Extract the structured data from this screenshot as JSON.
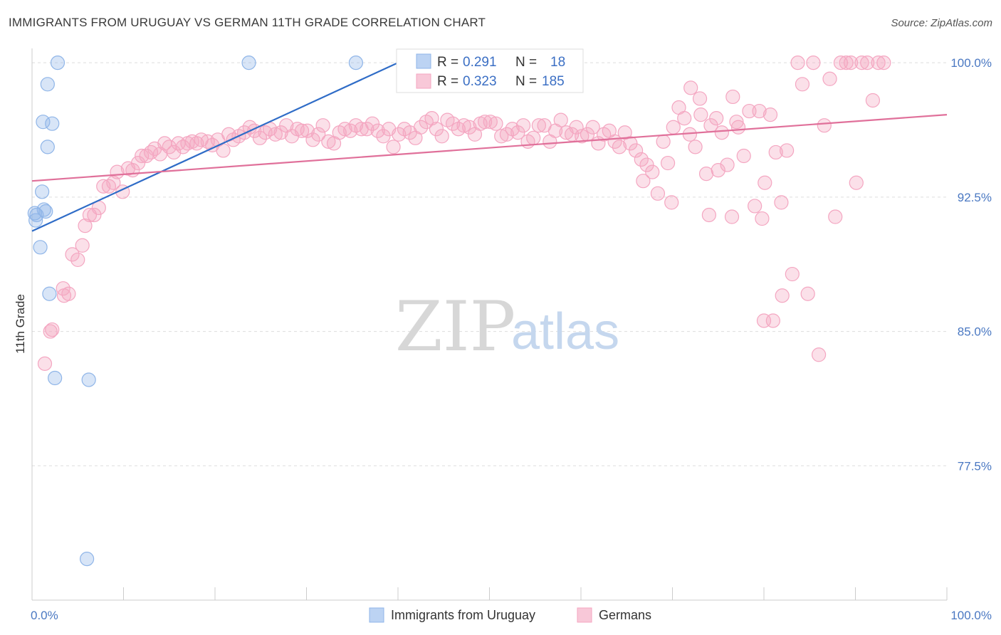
{
  "title": "IMMIGRANTS FROM URUGUAY VS GERMAN 11TH GRADE CORRELATION CHART",
  "source": "Source: ZipAtlas.com",
  "watermark": {
    "zip": "ZIP",
    "atlas": "atlas"
  },
  "chart_data": {
    "type": "scatter",
    "xlabel": "",
    "ylabel": "11th Grade",
    "xlim": [
      0,
      100
    ],
    "ylim": [
      70.0,
      100.8
    ],
    "x_tick_labels": [
      "0.0%",
      "100.0%"
    ],
    "y_ticks": [
      100.0,
      92.5,
      85.0,
      77.5
    ],
    "y_tick_labels": [
      "100.0%",
      "92.5%",
      "85.0%",
      "77.5%"
    ],
    "grid": true,
    "legend_position": "bottom-center",
    "stats": [
      {
        "r_label": "R =",
        "r": "0.291",
        "n_label": "N =",
        "n": "18"
      },
      {
        "r_label": "R =",
        "r": "0.323",
        "n_label": "N =",
        "n": "185"
      }
    ],
    "series": [
      {
        "name": "Immigrants from Uruguay",
        "color": "#8fb5e8",
        "line_color": "#2f6cc7",
        "trend": [
          [
            0,
            90.6
          ],
          [
            40,
            100.0
          ]
        ],
        "points": [
          [
            2.8,
            100.0
          ],
          [
            23.7,
            100.0
          ],
          [
            35.4,
            100.0
          ],
          [
            1.7,
            98.8
          ],
          [
            1.2,
            96.7
          ],
          [
            2.2,
            96.6
          ],
          [
            1.7,
            95.3
          ],
          [
            1.1,
            92.8
          ],
          [
            1.3,
            91.8
          ],
          [
            0.3,
            91.6
          ],
          [
            0.5,
            91.5
          ],
          [
            0.4,
            91.2
          ],
          [
            0.9,
            89.7
          ],
          [
            1.9,
            87.1
          ],
          [
            2.5,
            82.4
          ],
          [
            6.2,
            82.3
          ],
          [
            6.0,
            72.3
          ],
          [
            1.5,
            91.7
          ]
        ]
      },
      {
        "name": "Germans",
        "color": "#f4a6c1",
        "line_color": "#e0709a",
        "trend": [
          [
            0,
            93.4
          ],
          [
            100,
            97.1
          ]
        ],
        "points": [
          [
            1.4,
            83.2
          ],
          [
            2.2,
            85.1
          ],
          [
            2.0,
            85.0
          ],
          [
            3.5,
            87.0
          ],
          [
            3.4,
            87.4
          ],
          [
            4.0,
            87.1
          ],
          [
            4.4,
            89.3
          ],
          [
            5.0,
            89.0
          ],
          [
            5.5,
            89.8
          ],
          [
            5.8,
            90.9
          ],
          [
            6.3,
            91.5
          ],
          [
            6.8,
            91.5
          ],
          [
            7.3,
            91.9
          ],
          [
            7.8,
            93.1
          ],
          [
            8.4,
            93.1
          ],
          [
            8.9,
            93.3
          ],
          [
            9.3,
            93.9
          ],
          [
            9.9,
            92.8
          ],
          [
            10.5,
            94.1
          ],
          [
            11.0,
            94.0
          ],
          [
            11.6,
            94.4
          ],
          [
            12.0,
            94.8
          ],
          [
            12.5,
            94.8
          ],
          [
            13.0,
            95.0
          ],
          [
            13.4,
            95.2
          ],
          [
            14.0,
            94.9
          ],
          [
            14.5,
            95.5
          ],
          [
            15.0,
            95.3
          ],
          [
            15.5,
            95.0
          ],
          [
            16.0,
            95.5
          ],
          [
            16.5,
            95.3
          ],
          [
            17.0,
            95.5
          ],
          [
            17.5,
            95.6
          ],
          [
            18.0,
            95.5
          ],
          [
            18.5,
            95.7
          ],
          [
            19.2,
            95.6
          ],
          [
            19.7,
            95.4
          ],
          [
            20.3,
            95.7
          ],
          [
            20.9,
            95.1
          ],
          [
            21.5,
            96.0
          ],
          [
            22.0,
            95.7
          ],
          [
            22.6,
            95.9
          ],
          [
            23.2,
            96.1
          ],
          [
            23.8,
            96.4
          ],
          [
            24.3,
            96.2
          ],
          [
            24.9,
            95.8
          ],
          [
            25.5,
            96.1
          ],
          [
            26.0,
            96.3
          ],
          [
            26.6,
            96.0
          ],
          [
            27.2,
            96.1
          ],
          [
            27.8,
            96.5
          ],
          [
            28.4,
            95.9
          ],
          [
            29.0,
            96.3
          ],
          [
            29.5,
            96.2
          ],
          [
            30.1,
            96.2
          ],
          [
            30.7,
            95.7
          ],
          [
            31.3,
            96.0
          ],
          [
            31.8,
            96.5
          ],
          [
            32.4,
            95.6
          ],
          [
            33.0,
            95.5
          ],
          [
            33.6,
            96.1
          ],
          [
            34.2,
            96.3
          ],
          [
            34.8,
            96.2
          ],
          [
            35.4,
            96.5
          ],
          [
            36.0,
            96.3
          ],
          [
            36.6,
            96.3
          ],
          [
            37.2,
            96.6
          ],
          [
            37.8,
            96.2
          ],
          [
            38.4,
            95.9
          ],
          [
            39.0,
            96.3
          ],
          [
            39.5,
            95.3
          ],
          [
            40.1,
            96.0
          ],
          [
            40.7,
            96.3
          ],
          [
            41.3,
            96.1
          ],
          [
            41.9,
            95.8
          ],
          [
            42.5,
            96.4
          ],
          [
            43.1,
            96.7
          ],
          [
            43.7,
            96.9
          ],
          [
            44.2,
            96.3
          ],
          [
            44.8,
            95.9
          ],
          [
            45.4,
            96.8
          ],
          [
            46.0,
            96.6
          ],
          [
            46.6,
            96.3
          ],
          [
            47.2,
            96.5
          ],
          [
            47.8,
            96.4
          ],
          [
            48.4,
            96.0
          ],
          [
            49.0,
            96.6
          ],
          [
            49.5,
            96.7
          ],
          [
            50.1,
            96.7
          ],
          [
            50.7,
            96.6
          ],
          [
            51.3,
            95.9
          ],
          [
            51.9,
            96.0
          ],
          [
            52.5,
            96.3
          ],
          [
            53.1,
            96.1
          ],
          [
            53.7,
            96.5
          ],
          [
            54.2,
            95.6
          ],
          [
            54.8,
            95.8
          ],
          [
            55.4,
            96.5
          ],
          [
            56.0,
            96.5
          ],
          [
            56.6,
            95.6
          ],
          [
            57.2,
            96.2
          ],
          [
            57.8,
            96.8
          ],
          [
            58.4,
            96.1
          ],
          [
            59.0,
            96.0
          ],
          [
            59.5,
            96.4
          ],
          [
            60.1,
            95.9
          ],
          [
            60.7,
            96.0
          ],
          [
            61.3,
            96.4
          ],
          [
            61.9,
            95.5
          ],
          [
            62.5,
            96.0
          ],
          [
            63.1,
            96.2
          ],
          [
            63.7,
            95.6
          ],
          [
            64.2,
            95.3
          ],
          [
            64.8,
            96.1
          ],
          [
            65.4,
            95.5
          ],
          [
            66.0,
            95.1
          ],
          [
            66.6,
            94.6
          ],
          [
            67.2,
            94.3
          ],
          [
            67.8,
            93.9
          ],
          [
            68.4,
            92.7
          ],
          [
            69.0,
            95.6
          ],
          [
            69.5,
            94.4
          ],
          [
            70.1,
            96.4
          ],
          [
            70.7,
            97.5
          ],
          [
            71.3,
            96.9
          ],
          [
            71.9,
            96.0
          ],
          [
            72.5,
            95.3
          ],
          [
            73.1,
            97.1
          ],
          [
            73.7,
            93.8
          ],
          [
            74.2,
            96.5
          ],
          [
            74.8,
            96.9
          ],
          [
            75.4,
            96.1
          ],
          [
            76.0,
            94.3
          ],
          [
            76.6,
            98.1
          ],
          [
            77.2,
            96.4
          ],
          [
            77.8,
            94.8
          ],
          [
            78.4,
            97.3
          ],
          [
            79.0,
            92.0
          ],
          [
            79.5,
            97.3
          ],
          [
            80.1,
            93.3
          ],
          [
            80.7,
            97.1
          ],
          [
            81.3,
            95.0
          ],
          [
            81.9,
            92.2
          ],
          [
            82.5,
            95.1
          ],
          [
            83.1,
            88.2
          ],
          [
            83.7,
            100.0
          ],
          [
            84.2,
            98.8
          ],
          [
            84.8,
            87.1
          ],
          [
            85.4,
            100.0
          ],
          [
            86.0,
            83.7
          ],
          [
            86.6,
            96.5
          ],
          [
            87.2,
            99.1
          ],
          [
            87.8,
            91.4
          ],
          [
            88.4,
            100.0
          ],
          [
            89.0,
            100.0
          ],
          [
            89.5,
            100.0
          ],
          [
            90.1,
            93.3
          ],
          [
            90.7,
            100.0
          ],
          [
            91.3,
            100.0
          ],
          [
            91.9,
            97.9
          ],
          [
            92.5,
            100.0
          ],
          [
            93.1,
            100.0
          ],
          [
            72.0,
            98.6
          ],
          [
            76.5,
            91.4
          ],
          [
            79.8,
            91.3
          ],
          [
            81.0,
            85.6
          ],
          [
            82.0,
            87.0
          ],
          [
            80.0,
            85.6
          ],
          [
            66.8,
            93.4
          ],
          [
            75.0,
            94.0
          ],
          [
            77.0,
            96.7
          ],
          [
            69.9,
            92.2
          ],
          [
            73.0,
            98.0
          ],
          [
            74.0,
            91.5
          ]
        ]
      }
    ]
  }
}
